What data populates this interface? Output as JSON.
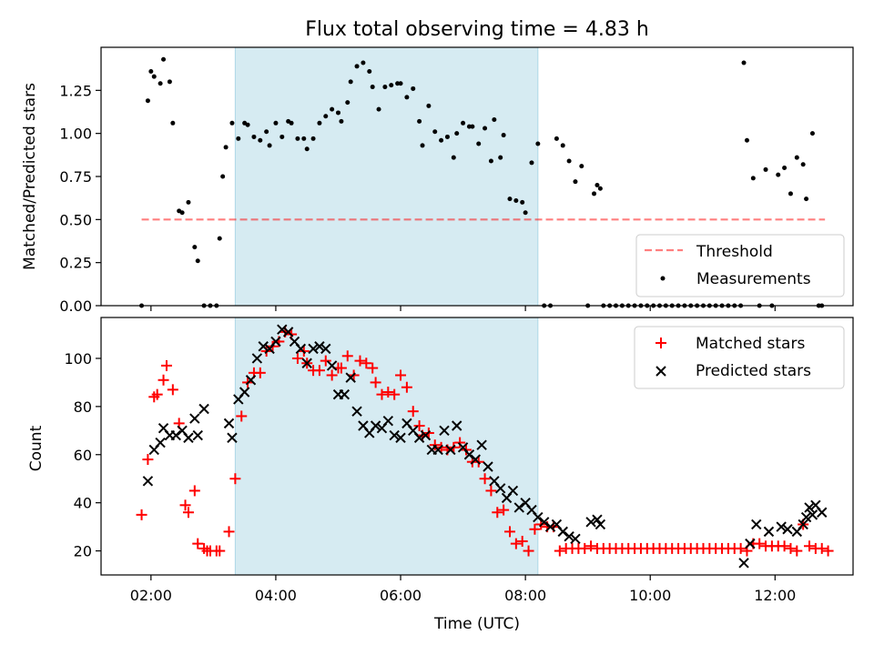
{
  "title": "Flux total observing time = 4.83 h",
  "colors": {
    "span": "#add8e6",
    "threshold": "#ff0000",
    "measurement": "#000000",
    "matched": "#ff0000",
    "predicted": "#000000"
  },
  "chart_data": [
    {
      "type": "scatter",
      "panel": "top",
      "ylabel": "Matched/Predicted stars",
      "xlabel": "",
      "x_unit": "hours UTC",
      "xlim": [
        1.2,
        13.25
      ],
      "ylim": [
        0,
        1.5
      ],
      "yticks": [
        0,
        0.25,
        0.5,
        0.75,
        1.0,
        1.25
      ],
      "ytick_labels": [
        "0.00",
        "0.25",
        "0.50",
        "0.75",
        "1.00",
        "1.25"
      ],
      "grid": false,
      "legend_position": "lower right",
      "highlight_span": [
        3.35,
        8.2
      ],
      "threshold": {
        "name": "Threshold",
        "y": 0.5,
        "x": [
          1.85,
          12.8
        ],
        "style": "dashed"
      },
      "series": [
        {
          "name": "Measurements",
          "x": [
            1.85,
            1.95,
            2.0,
            2.05,
            2.15,
            2.2,
            2.3,
            2.35,
            2.45,
            2.5,
            2.6,
            2.7,
            2.75,
            2.85,
            2.95,
            3.05,
            3.1,
            3.15,
            3.2,
            3.3,
            3.4,
            3.5,
            3.55,
            3.65,
            3.75,
            3.85,
            3.9,
            4.0,
            4.1,
            4.2,
            4.25,
            4.35,
            4.45,
            4.5,
            4.6,
            4.7,
            4.8,
            4.9,
            5.0,
            5.05,
            5.15,
            5.2,
            5.3,
            5.4,
            5.5,
            5.55,
            5.65,
            5.75,
            5.85,
            5.95,
            6.0,
            6.1,
            6.2,
            6.3,
            6.35,
            6.45,
            6.55,
            6.65,
            6.75,
            6.85,
            6.9,
            7.0,
            7.1,
            7.15,
            7.25,
            7.35,
            7.45,
            7.5,
            7.6,
            7.65,
            7.75,
            7.85,
            7.95,
            8.0,
            8.1,
            8.2,
            8.3,
            8.4,
            8.5,
            8.6,
            8.7,
            8.8,
            8.9,
            9.0,
            9.1,
            9.15,
            9.2,
            9.25,
            9.35,
            9.45,
            9.55,
            9.65,
            9.75,
            9.85,
            9.95,
            10.05,
            10.15,
            10.25,
            10.35,
            10.45,
            10.55,
            10.65,
            10.75,
            10.85,
            10.95,
            11.05,
            11.15,
            11.25,
            11.35,
            11.45,
            11.5,
            11.55,
            11.65,
            11.75,
            11.85,
            11.95,
            12.05,
            12.15,
            12.25,
            12.35,
            12.45,
            12.5,
            12.6,
            12.7,
            12.75
          ],
          "y": [
            0.0,
            1.19,
            1.36,
            1.33,
            1.29,
            1.43,
            1.3,
            1.06,
            0.55,
            0.54,
            0.6,
            0.34,
            0.26,
            0.0,
            0.0,
            0.0,
            0.39,
            0.75,
            0.92,
            1.06,
            0.97,
            1.06,
            1.05,
            0.98,
            0.96,
            1.01,
            0.93,
            1.06,
            0.98,
            1.07,
            1.06,
            0.97,
            0.97,
            0.91,
            0.97,
            1.06,
            1.1,
            1.14,
            1.12,
            1.07,
            1.18,
            1.3,
            1.39,
            1.41,
            1.36,
            1.27,
            1.14,
            1.27,
            1.28,
            1.29,
            1.29,
            1.21,
            1.26,
            1.07,
            0.93,
            1.16,
            1.01,
            0.96,
            0.98,
            0.86,
            1.0,
            1.06,
            1.04,
            1.04,
            0.94,
            1.03,
            0.84,
            1.08,
            0.86,
            0.99,
            0.62,
            0.61,
            0.6,
            0.54,
            0.83,
            0.94,
            0.0,
            0.0,
            0.97,
            0.93,
            0.84,
            0.72,
            0.81,
            0.0,
            0.65,
            0.7,
            0.68,
            0.0,
            0.0,
            0.0,
            0.0,
            0.0,
            0.0,
            0.0,
            0.0,
            0.0,
            0.0,
            0.0,
            0.0,
            0.0,
            0.0,
            0.0,
            0.0,
            0.0,
            0.0,
            0.0,
            0.0,
            0.0,
            0.0,
            0.0,
            1.41,
            0.96,
            0.74,
            0.0,
            0.79,
            0.0,
            0.76,
            0.8,
            0.65,
            0.86,
            0.82,
            0.62,
            1.0,
            0.0,
            0.0
          ]
        }
      ]
    },
    {
      "type": "scatter",
      "panel": "bottom",
      "xlabel": "Time (UTC)",
      "ylabel": "Count",
      "x_unit": "hours UTC",
      "xlim": [
        1.2,
        13.25
      ],
      "ylim": [
        10,
        117
      ],
      "xticks": [
        2,
        4,
        6,
        8,
        10,
        12
      ],
      "xtick_labels": [
        "02:00",
        "04:00",
        "06:00",
        "08:00",
        "10:00",
        "12:00"
      ],
      "yticks": [
        20,
        40,
        60,
        80,
        100
      ],
      "ytick_labels": [
        "20",
        "40",
        "60",
        "80",
        "100"
      ],
      "grid": false,
      "legend_position": "upper right",
      "highlight_span": [
        3.35,
        8.2
      ],
      "series": [
        {
          "name": "Matched stars",
          "marker": "plus",
          "x": [
            1.85,
            1.95,
            2.05,
            2.1,
            2.2,
            2.25,
            2.35,
            2.45,
            2.55,
            2.6,
            2.7,
            2.75,
            2.85,
            2.9,
            2.95,
            3.05,
            3.1,
            3.25,
            3.35,
            3.45,
            3.55,
            3.65,
            3.75,
            3.85,
            3.95,
            4.05,
            4.15,
            4.25,
            4.35,
            4.45,
            4.5,
            4.6,
            4.7,
            4.8,
            4.9,
            5.0,
            5.05,
            5.15,
            5.25,
            5.35,
            5.45,
            5.55,
            5.6,
            5.7,
            5.8,
            5.9,
            6.0,
            6.1,
            6.2,
            6.3,
            6.35,
            6.45,
            6.55,
            6.65,
            6.75,
            6.85,
            6.95,
            7.05,
            7.15,
            7.25,
            7.35,
            7.45,
            7.55,
            7.65,
            7.75,
            7.85,
            7.95,
            8.05,
            8.15,
            8.25,
            8.35,
            8.45,
            8.55,
            8.65,
            8.75,
            8.85,
            8.95,
            9.05,
            9.15,
            9.25,
            9.35,
            9.45,
            9.55,
            9.65,
            9.75,
            9.85,
            9.95,
            10.05,
            10.15,
            10.25,
            10.35,
            10.45,
            10.55,
            10.65,
            10.75,
            10.85,
            10.95,
            11.05,
            11.15,
            11.25,
            11.35,
            11.45,
            11.55,
            11.65,
            11.75,
            11.85,
            11.95,
            12.05,
            12.15,
            12.25,
            12.35,
            12.45,
            12.55,
            12.65,
            12.75,
            12.85
          ],
          "y": [
            35,
            58,
            84,
            85,
            91,
            97,
            87,
            73,
            39,
            36,
            45,
            23,
            21,
            20,
            20,
            20,
            20,
            28,
            50,
            76,
            90,
            94,
            94,
            103,
            105,
            107,
            111,
            110,
            100,
            103,
            98,
            95,
            95,
            99,
            93,
            96,
            96,
            101,
            93,
            99,
            98,
            96,
            90,
            85,
            86,
            85,
            93,
            88,
            78,
            72,
            68,
            69,
            64,
            63,
            62,
            63,
            65,
            62,
            57,
            57,
            50,
            45,
            36,
            37,
            28,
            23,
            24,
            20,
            29,
            31,
            30,
            30,
            20,
            21,
            21,
            21,
            21,
            22,
            21,
            21,
            21,
            21,
            21,
            21,
            21,
            21,
            21,
            21,
            21,
            21,
            21,
            21,
            21,
            21,
            21,
            21,
            21,
            21,
            21,
            21,
            21,
            21,
            20,
            23,
            23,
            22,
            22,
            22,
            22,
            21,
            20,
            31,
            22,
            21,
            21,
            20
          ],
          "y_order_note": ""
        },
        {
          "name": "Predicted stars",
          "marker": "x",
          "x": [
            1.95,
            2.05,
            2.15,
            2.2,
            2.3,
            2.4,
            2.5,
            2.6,
            2.7,
            2.75,
            2.85,
            3.25,
            3.3,
            3.4,
            3.5,
            3.6,
            3.7,
            3.8,
            3.9,
            4.0,
            4.1,
            4.2,
            4.3,
            4.4,
            4.5,
            4.6,
            4.7,
            4.8,
            4.9,
            5.0,
            5.1,
            5.2,
            5.3,
            5.4,
            5.5,
            5.6,
            5.7,
            5.8,
            5.9,
            6.0,
            6.1,
            6.2,
            6.3,
            6.4,
            6.5,
            6.6,
            6.7,
            6.8,
            6.9,
            7.0,
            7.1,
            7.2,
            7.3,
            7.4,
            7.5,
            7.6,
            7.7,
            7.8,
            7.9,
            8.0,
            8.1,
            8.2,
            8.3,
            8.4,
            8.5,
            8.6,
            8.7,
            8.8,
            9.05,
            9.15,
            9.2,
            11.5,
            11.6,
            11.7,
            11.9,
            12.1,
            12.2,
            12.35,
            12.45,
            12.5,
            12.55,
            12.6,
            12.65,
            12.75
          ],
          "y": [
            49,
            62,
            65,
            71,
            68,
            68,
            70,
            67,
            75,
            68,
            79,
            73,
            67,
            83,
            86,
            91,
            100,
            105,
            104,
            107,
            112,
            111,
            107,
            104,
            98,
            104,
            105,
            104,
            97,
            85,
            85,
            92,
            78,
            72,
            69,
            72,
            71,
            74,
            68,
            67,
            73,
            70,
            67,
            68,
            62,
            62,
            70,
            62,
            72,
            63,
            60,
            58,
            64,
            55,
            49,
            46,
            42,
            45,
            38,
            40,
            37,
            34,
            32,
            30,
            31,
            28,
            26,
            25,
            32,
            33,
            31,
            15,
            23,
            31,
            28,
            30,
            29,
            28,
            31,
            34,
            38,
            35,
            39,
            36
          ]
        }
      ]
    }
  ]
}
